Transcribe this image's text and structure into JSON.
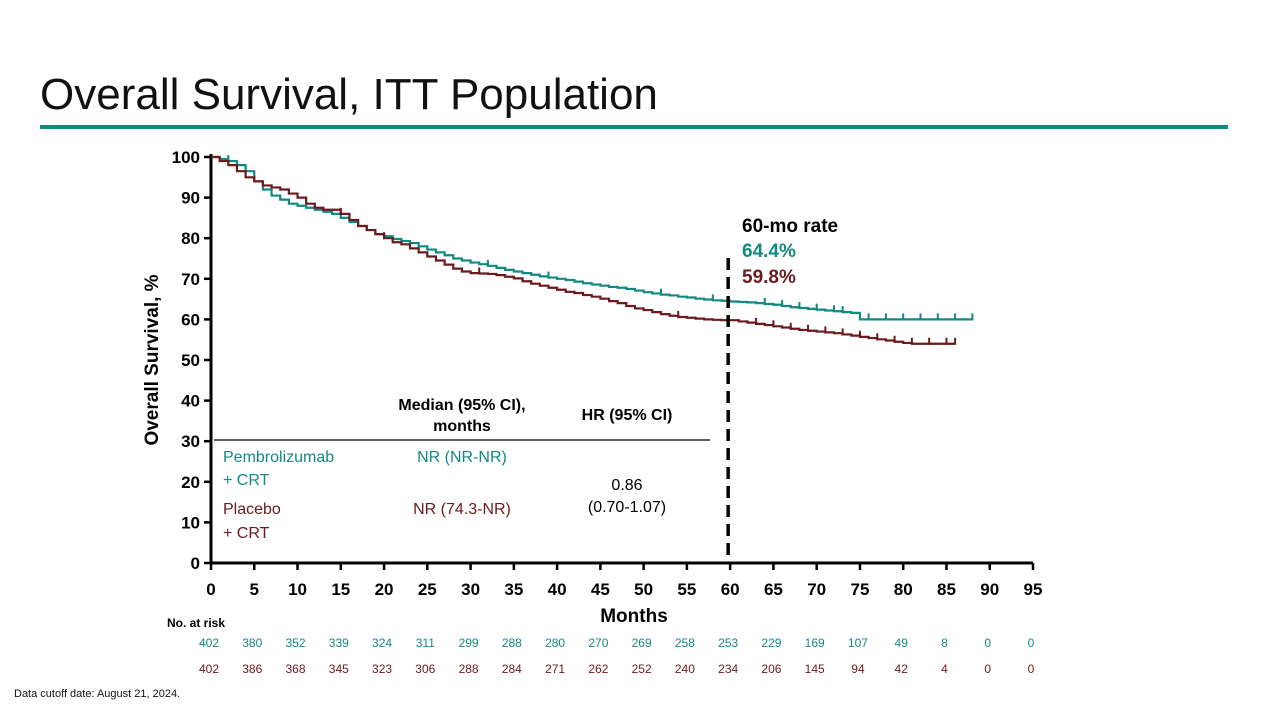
{
  "slide": {
    "title": "Overall Survival, ITT Population",
    "footnote": "Data cutoff date: August 21, 2024."
  },
  "colors": {
    "teal": "#138a80",
    "maroon": "#6b1a1d",
    "rule": "#138a80"
  },
  "chart_data": {
    "type": "line",
    "title": "Overall Survival, ITT Population",
    "xlabel": "Months",
    "ylabel": "Overall Survival, %",
    "xlim": [
      0,
      95
    ],
    "ylim": [
      0,
      100
    ],
    "xticks": [
      0,
      5,
      10,
      15,
      20,
      25,
      30,
      35,
      40,
      45,
      50,
      55,
      60,
      65,
      70,
      75,
      80,
      85,
      90,
      95
    ],
    "yticks": [
      0,
      10,
      20,
      30,
      40,
      50,
      60,
      70,
      80,
      90,
      100
    ],
    "series": [
      {
        "name": "Pembrolizumab + CRT",
        "color": "#138a80",
        "x": [
          0,
          1,
          2,
          3,
          4,
          5,
          6,
          7,
          8,
          9,
          10,
          11,
          12,
          13,
          14,
          15,
          16,
          17,
          18,
          19,
          20,
          21,
          22,
          23,
          24,
          25,
          26,
          27,
          28,
          29,
          30,
          31,
          32,
          33,
          34,
          35,
          36,
          37,
          38,
          39,
          40,
          41,
          42,
          43,
          44,
          45,
          46,
          47,
          48,
          49,
          50,
          51,
          52,
          53,
          54,
          55,
          56,
          57,
          58,
          59,
          60,
          61,
          62,
          63,
          64,
          65,
          66,
          67,
          68,
          69,
          70,
          71,
          72,
          73,
          74,
          75,
          76,
          77,
          78,
          79,
          80,
          81,
          82,
          83,
          84,
          85,
          86,
          87,
          88
        ],
        "y": [
          100,
          99.5,
          99,
          98,
          96.5,
          94,
          92,
          90.5,
          89.5,
          88.5,
          88,
          87.5,
          87,
          86.5,
          86,
          85,
          84,
          83,
          82,
          81,
          80.5,
          79.8,
          79.3,
          78.8,
          78,
          77.2,
          76.5,
          75.8,
          75,
          74.5,
          74,
          73.6,
          73.2,
          72.7,
          72.2,
          71.8,
          71.4,
          71,
          70.6,
          70.3,
          70,
          69.7,
          69.3,
          68.9,
          68.6,
          68.3,
          68,
          67.8,
          67.5,
          67.1,
          66.7,
          66.4,
          66.1,
          65.9,
          65.6,
          65.4,
          65.1,
          64.9,
          64.7,
          64.6,
          64.4,
          64.3,
          64.2,
          64,
          63.8,
          63.6,
          63.3,
          63,
          62.8,
          62.6,
          62.4,
          62.2,
          62,
          61.8,
          61.6,
          60,
          60,
          60,
          60,
          60,
          60,
          60,
          60,
          60,
          60,
          60,
          60,
          60,
          60
        ],
        "censor_x": [
          2,
          32,
          39,
          52,
          58,
          64,
          66,
          68,
          70,
          72,
          73,
          76,
          78,
          80,
          82,
          84,
          86,
          88
        ]
      },
      {
        "name": "Placebo + CRT",
        "color": "#6b1a1d",
        "x": [
          0,
          1,
          2,
          3,
          4,
          5,
          6,
          7,
          8,
          9,
          10,
          11,
          12,
          13,
          14,
          15,
          16,
          17,
          18,
          19,
          20,
          21,
          22,
          23,
          24,
          25,
          26,
          27,
          28,
          29,
          30,
          31,
          32,
          33,
          34,
          35,
          36,
          37,
          38,
          39,
          40,
          41,
          42,
          43,
          44,
          45,
          46,
          47,
          48,
          49,
          50,
          51,
          52,
          53,
          54,
          55,
          56,
          57,
          58,
          59,
          60,
          61,
          62,
          63,
          64,
          65,
          66,
          67,
          68,
          69,
          70,
          71,
          72,
          73,
          74,
          75,
          76,
          77,
          78,
          79,
          80,
          81,
          82,
          83,
          84,
          85,
          86
        ],
        "y": [
          100,
          99,
          98,
          96.5,
          95,
          94,
          93,
          92.5,
          92,
          91,
          90,
          88.5,
          87.5,
          87,
          87,
          86,
          84.5,
          83,
          82,
          81,
          80,
          79,
          78.5,
          77.5,
          76.5,
          75.5,
          74.5,
          73.5,
          72.5,
          71.8,
          71.4,
          71.3,
          71.2,
          70.9,
          70.5,
          70.1,
          69.4,
          68.8,
          68.3,
          67.8,
          67.3,
          66.8,
          66.5,
          66,
          65.6,
          65.1,
          64.5,
          64,
          63.3,
          62.7,
          62.3,
          61.8,
          61.3,
          60.9,
          60.6,
          60.4,
          60.2,
          60,
          59.9,
          59.8,
          59.8,
          59.5,
          59.2,
          58.9,
          58.6,
          58.3,
          58,
          57.7,
          57.4,
          57.2,
          57,
          56.8,
          56.6,
          56.3,
          56,
          55.7,
          55.4,
          55.1,
          54.8,
          54.5,
          54.2,
          54,
          54,
          54,
          54,
          54,
          54
        ],
        "censor_x": [
          15,
          20,
          31,
          54,
          63,
          65,
          67,
          69,
          71,
          73,
          75,
          77,
          79,
          81,
          83,
          85,
          86
        ]
      }
    ],
    "cutoff_line": {
      "x": 60,
      "style": "dashed"
    },
    "annotation": {
      "header": "60-mo rate",
      "values": [
        {
          "label": "64.4%",
          "series": "Pembrolizumab + CRT"
        },
        {
          "label": "59.8%",
          "series": "Placebo + CRT"
        }
      ]
    },
    "summary_table": {
      "col_median_line1": "Median (95% CI),",
      "col_median_line2": "months",
      "col_hr": "HR (95% CI)",
      "rows": [
        {
          "name_line1": "Pembrolizumab",
          "name_line2": "+ CRT",
          "median": "NR (NR-NR)"
        },
        {
          "name_line1": "Placebo",
          "name_line2": "+ CRT",
          "median": "NR (74.3-NR)"
        }
      ],
      "hr_line1": "0.86",
      "hr_line2": "(0.70-1.07)"
    },
    "at_risk": {
      "label": "No. at risk",
      "times": [
        0,
        5,
        10,
        15,
        20,
        25,
        30,
        35,
        40,
        45,
        50,
        55,
        60,
        65,
        70,
        75,
        80,
        85,
        90,
        95
      ],
      "pembrolizumab": [
        402,
        380,
        352,
        339,
        324,
        311,
        299,
        288,
        280,
        270,
        269,
        258,
        253,
        229,
        169,
        107,
        49,
        8,
        0,
        0
      ],
      "placebo": [
        402,
        386,
        368,
        345,
        323,
        306,
        288,
        284,
        271,
        262,
        252,
        240,
        234,
        206,
        145,
        94,
        42,
        4,
        0,
        0
      ]
    }
  }
}
